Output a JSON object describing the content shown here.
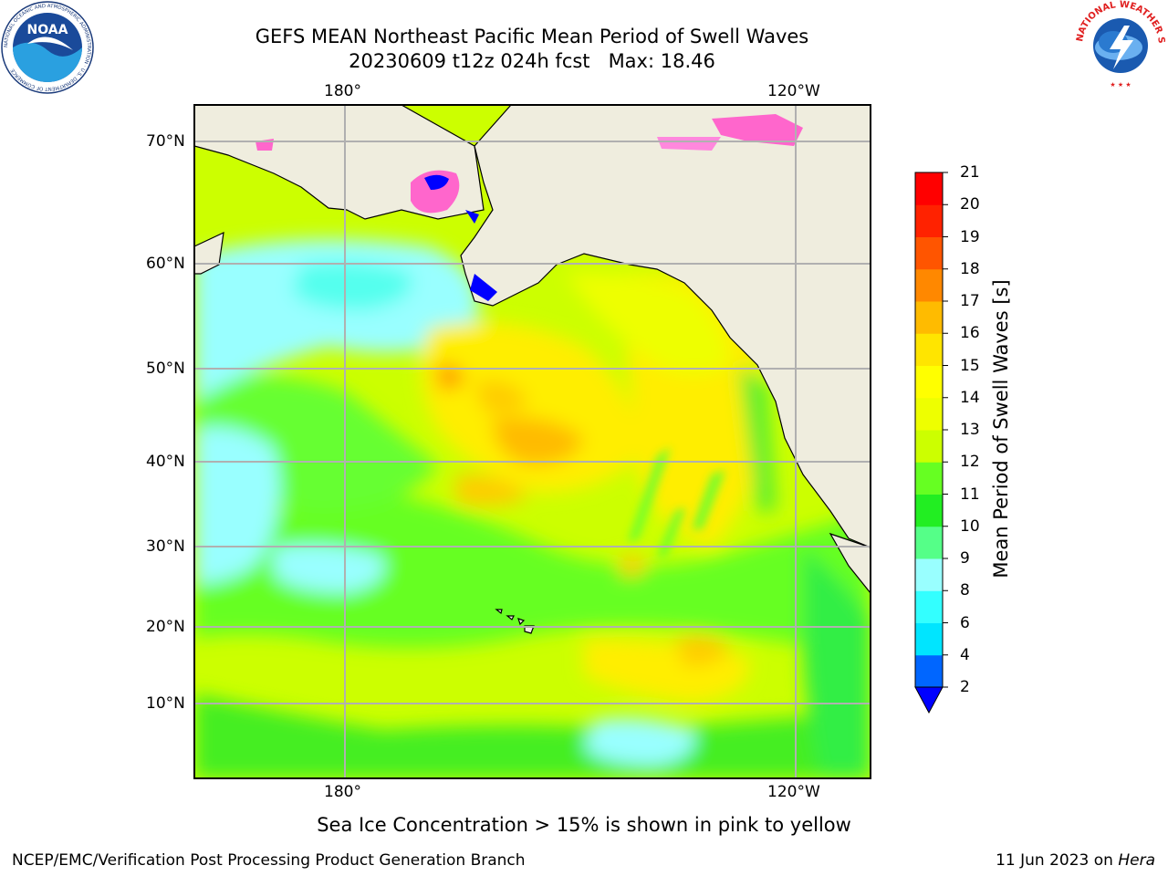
{
  "title": {
    "line1": "GEFS MEAN Northeast Pacific Mean Period of Swell Waves",
    "line2": "20230609 t12z 024h fcst   Max: 18.46"
  },
  "map": {
    "lon_labels_top": [
      "180°",
      "120°W"
    ],
    "lon_labels_bottom": [
      "180°",
      "120°W"
    ],
    "lat_labels": [
      "70°N",
      "60°N",
      "50°N",
      "40°N",
      "30°N",
      "20°N",
      "10°N"
    ],
    "colors": {
      "land": "#efedde",
      "gridline": "#b0b0b0",
      "coast": "#000000"
    }
  },
  "colorbar": {
    "label": "Mean Period of Swell Waves [s]",
    "ticks": [
      "2",
      "4",
      "6",
      "8",
      "9",
      "10",
      "11",
      "12",
      "13",
      "14",
      "15",
      "16",
      "17",
      "18",
      "19",
      "20",
      "21"
    ],
    "colors": [
      "#0066ff",
      "#00e5ff",
      "#33ffff",
      "#99ffff",
      "#55ff88",
      "#22ee22",
      "#66ff22",
      "#ccff00",
      "#eeff00",
      "#ffff00",
      "#ffe500",
      "#ffbb00",
      "#ff8800",
      "#ff5500",
      "#ff2200",
      "#ff0000"
    ],
    "under_color": "#0000ff"
  },
  "note": "Sea Ice Concentration > 15% is shown in pink to yellow",
  "footer": {
    "left": "NCEP/EMC/Verification Post Processing Product Generation Branch",
    "right_date": "11 Jun 2023 on ",
    "right_machine": "Hera"
  },
  "logos": {
    "noaa_text": "NOAA",
    "noaa_ring_text": "NATIONAL OCEANIC AND ATMOSPHERIC ADMINISTRATION · U.S. DEPARTMENT OF COMMERCE",
    "nws_ring_text": "NATIONAL WEATHER SERVICE"
  }
}
